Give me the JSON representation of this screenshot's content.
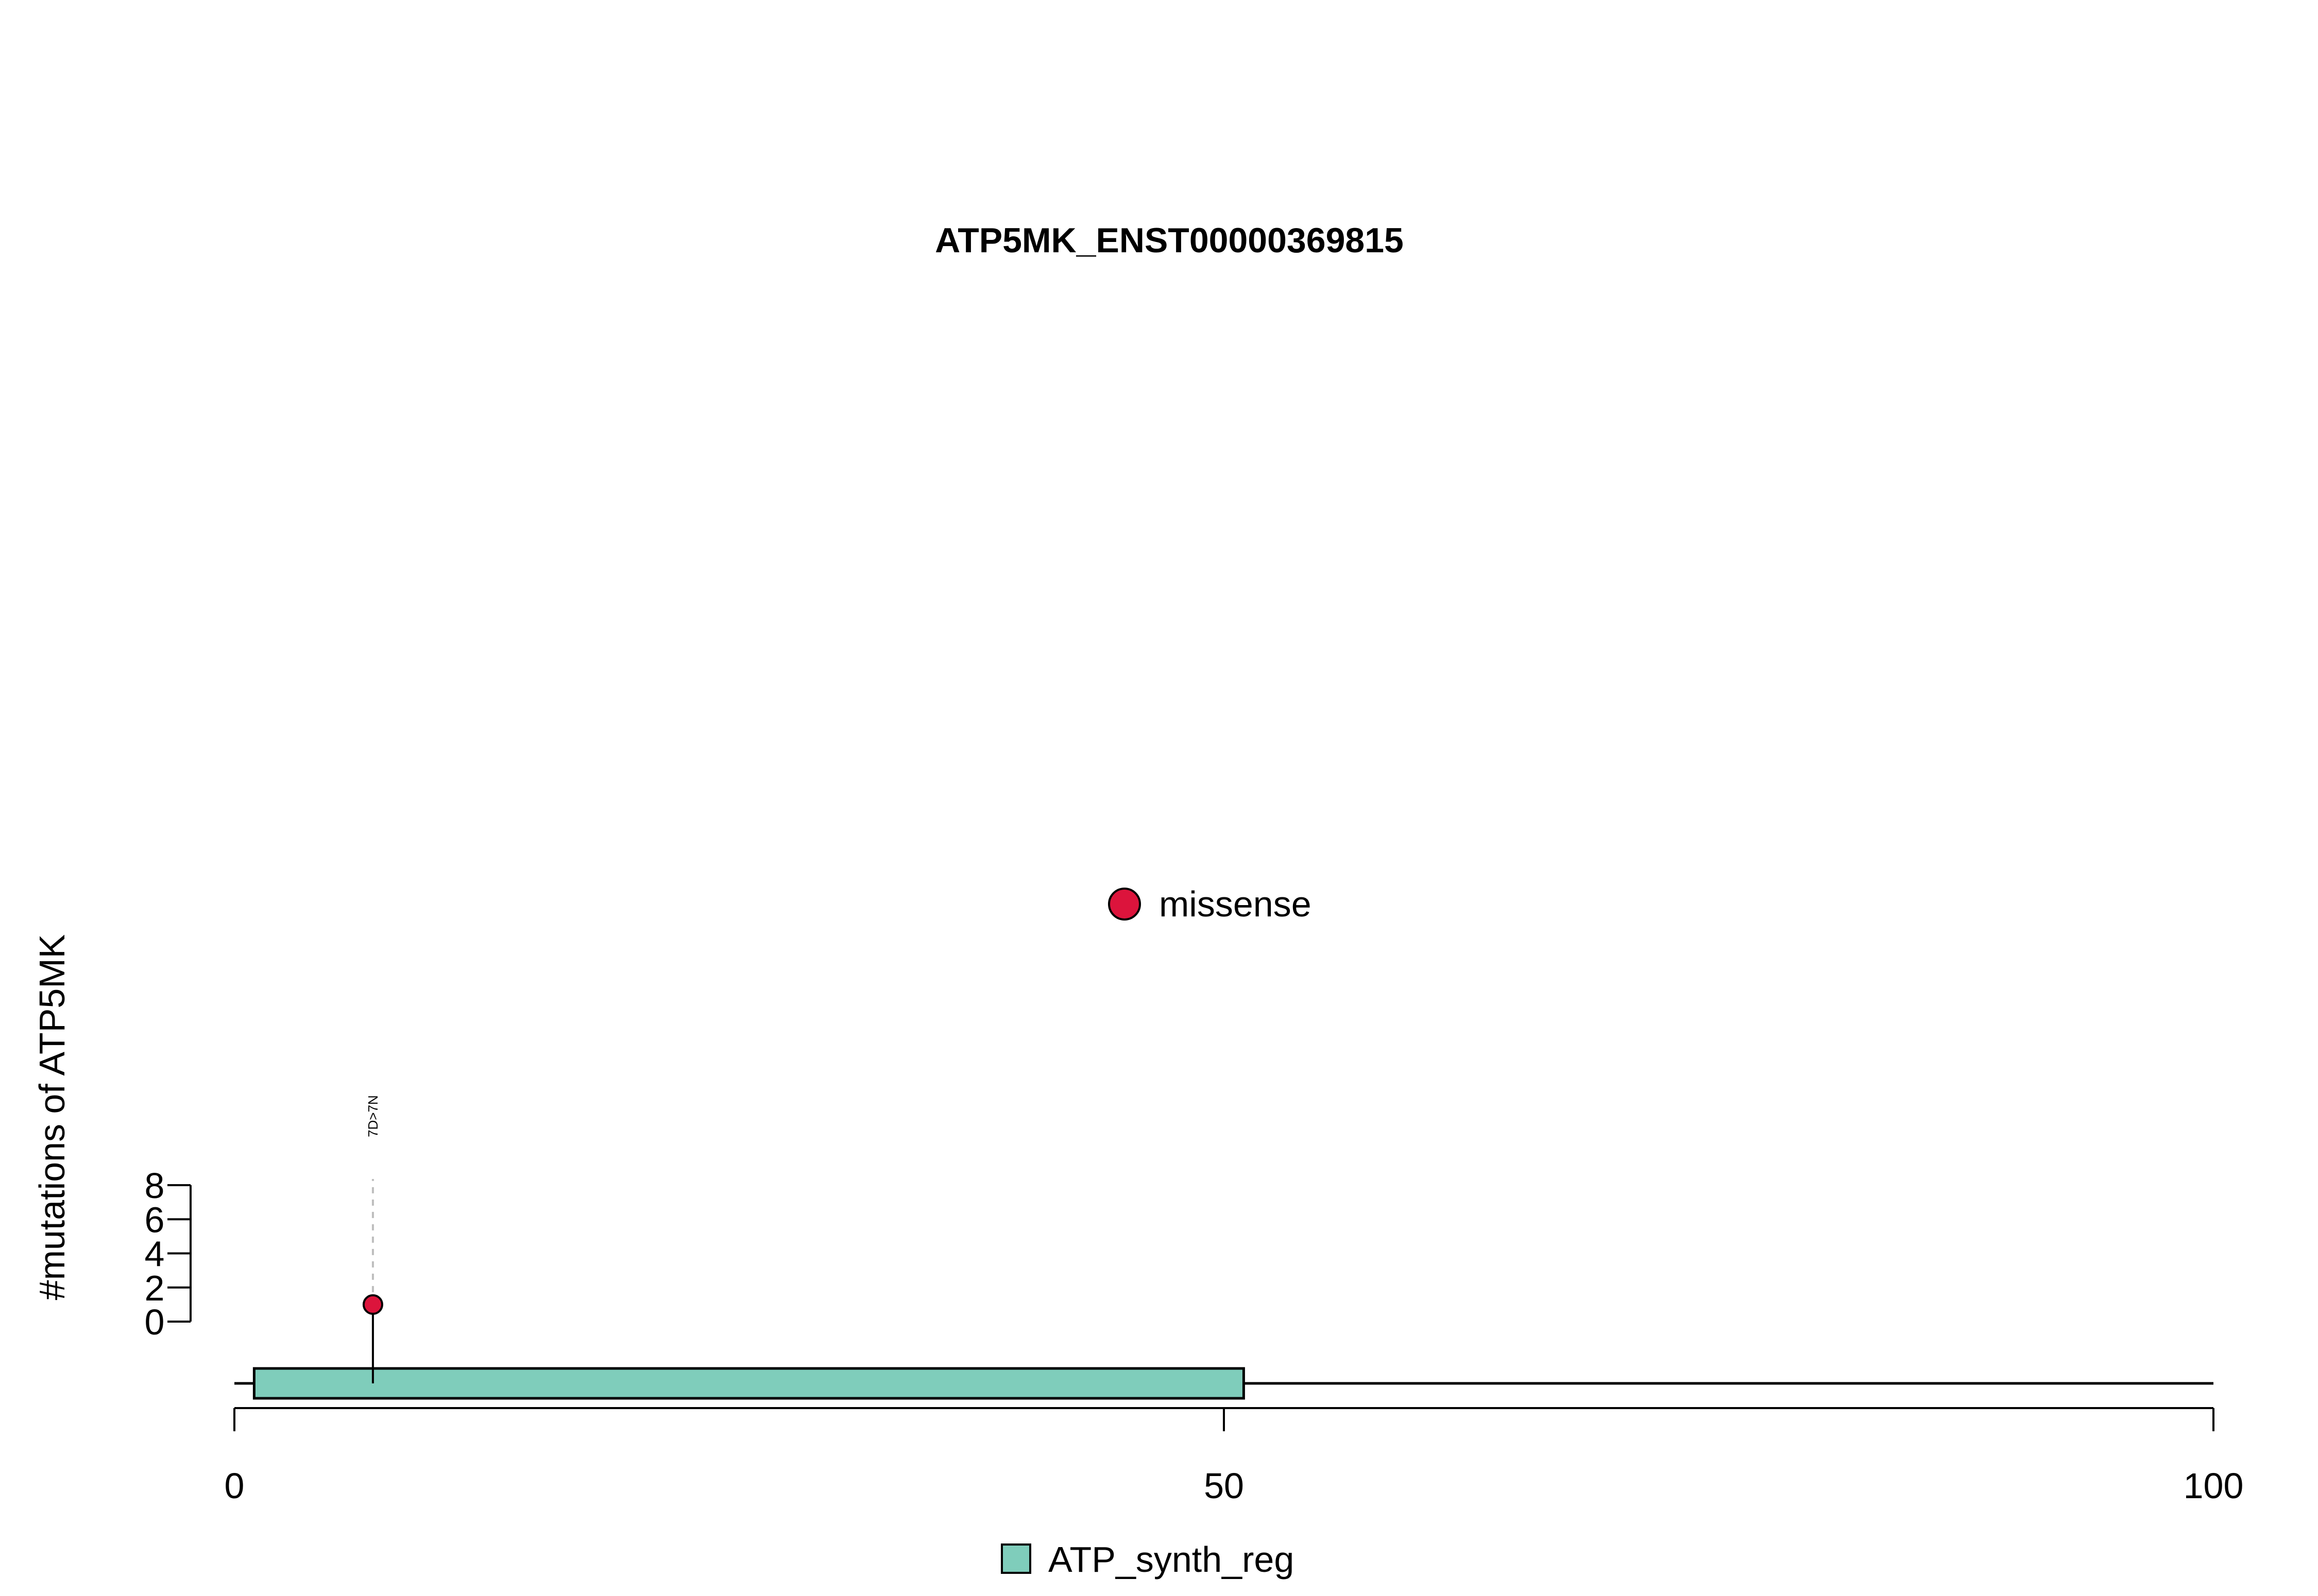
{
  "chart_data": {
    "type": "lollipop",
    "title": "ATP5MK_ENST00000369815",
    "ylabel": "#mutations of ATP5MK",
    "x_ticks": [
      0,
      50,
      100
    ],
    "xlim": [
      0,
      100
    ],
    "y_ticks": [
      0,
      2,
      4,
      6,
      8
    ],
    "ylim": [
      0,
      8
    ],
    "protein_length": 100,
    "mutation_legend": [
      {
        "label": "missense",
        "color": "#DC143C"
      }
    ],
    "mutations": [
      {
        "position": 7,
        "count": 1,
        "label": "7D>7N",
        "type": "missense"
      }
    ],
    "domains": [
      {
        "name": "ATP_synth_reg",
        "start": 1,
        "end": 51,
        "color": "#7FCDBB"
      }
    ],
    "domain_legend": [
      {
        "label": "ATP_synth_reg",
        "color": "#7FCDBB"
      }
    ]
  }
}
